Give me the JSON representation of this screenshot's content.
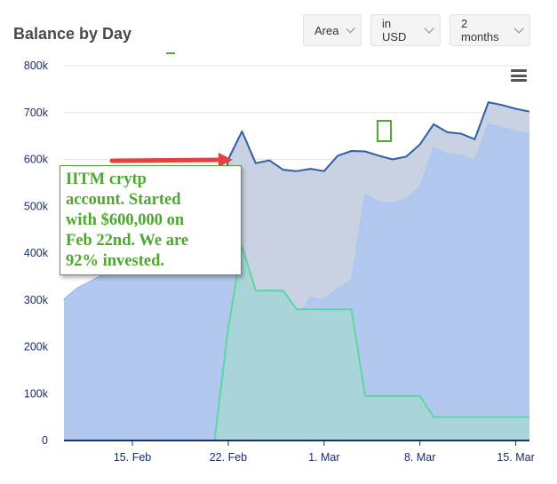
{
  "header": {
    "title": "Balance by Day"
  },
  "controls": {
    "chart_type": "Area",
    "currency": "in USD",
    "range": "2 months"
  },
  "annotation": {
    "text": "IITM crytp\naccount.  Started\nwith $600,000 on\nFeb 22nd.   We are\n92% invested."
  },
  "chart_data": {
    "type": "area",
    "title": "Balance by Day",
    "xlabel": "",
    "ylabel": "",
    "ylim": [
      0,
      800000
    ],
    "y_ticks": [
      0,
      100000,
      200000,
      300000,
      400000,
      500000,
      600000,
      700000,
      800000
    ],
    "y_tick_labels": [
      "0",
      "100k",
      "200k",
      "300k",
      "400k",
      "500k",
      "600k",
      "700k",
      "800k"
    ],
    "x_range": [
      "2022-02-10",
      "2022-03-16"
    ],
    "x_ticks": [
      "2022-02-15",
      "2022-02-22",
      "2022-03-01",
      "2022-03-08",
      "2022-03-15"
    ],
    "x_tick_labels": [
      "15. Feb",
      "22. Feb",
      "1. Mar",
      "8. Mar",
      "15. Mar"
    ],
    "grid": true,
    "colors": {
      "total_line": "#2e5fa8",
      "total_fill": "#c9d2e2",
      "mid_line": "#a9c6f2",
      "mid_fill": "#b3c8ee",
      "green_line": "#5dd6a4",
      "green_fill": "#a9d5d8",
      "axis": "#1e2f6b",
      "grid": "#e3e6ea",
      "tick_text": "#1d2d6b",
      "annotation_text": "#4da82f",
      "arrow": "#e34040"
    },
    "series": [
      {
        "x": [
          "2022-02-10",
          "2022-02-11",
          "2022-02-12",
          "2022-02-13",
          "2022-02-14",
          "2022-02-15",
          "2022-02-16",
          "2022-02-17",
          "2022-02-18",
          "2022-02-19",
          "2022-02-20",
          "2022-02-21",
          "2022-02-22",
          "2022-02-23",
          "2022-02-24",
          "2022-02-25",
          "2022-02-26",
          "2022-02-27",
          "2022-02-28",
          "2022-03-01",
          "2022-03-02",
          "2022-03-03",
          "2022-03-04",
          "2022-03-05",
          "2022-03-06",
          "2022-03-07",
          "2022-03-08",
          "2022-03-09",
          "2022-03-10",
          "2022-03-11",
          "2022-03-12",
          "2022-03-13",
          "2022-03-14",
          "2022-03-15",
          "2022-03-16"
        ],
        "values": [
          300000,
          325000,
          340000,
          355000,
          362000,
          360000,
          365000,
          372000,
          380000,
          392000,
          402000,
          412000,
          600000,
          660000,
          592000,
          598000,
          578000,
          575000,
          580000,
          575000,
          608000,
          618000,
          617000,
          608000,
          600000,
          606000,
          632000,
          675000,
          658000,
          655000,
          643000,
          722000,
          716000,
          708000,
          702000
        ]
      },
      {
        "x": [
          "2022-02-10",
          "2022-02-11",
          "2022-02-12",
          "2022-02-13",
          "2022-02-14",
          "2022-02-15",
          "2022-02-16",
          "2022-02-17",
          "2022-02-18",
          "2022-02-19",
          "2022-02-20",
          "2022-02-21",
          "2022-02-22",
          "2022-02-23",
          "2022-02-24",
          "2022-02-25",
          "2022-02-26",
          "2022-02-27",
          "2022-02-28",
          "2022-03-01",
          "2022-03-02",
          "2022-03-03",
          "2022-03-04",
          "2022-03-05",
          "2022-03-06",
          "2022-03-07",
          "2022-03-08",
          "2022-03-09",
          "2022-03-10",
          "2022-03-11",
          "2022-03-12",
          "2022-03-13",
          "2022-03-14",
          "2022-03-15",
          "2022-03-16"
        ],
        "values": [
          300000,
          325000,
          340000,
          355000,
          362000,
          360000,
          365000,
          372000,
          380000,
          392000,
          402000,
          412000,
          420000,
          400000,
          180000,
          280000,
          262000,
          255000,
          305000,
          300000,
          325000,
          340000,
          525000,
          508000,
          507000,
          515000,
          540000,
          625000,
          612000,
          608000,
          598000,
          675000,
          668000,
          660000,
          655000
        ]
      },
      {
        "x": [
          "2022-02-10",
          "2022-02-20",
          "2022-02-21",
          "2022-02-22",
          "2022-02-23",
          "2022-02-24",
          "2022-02-25",
          "2022-02-26",
          "2022-02-27",
          "2022-02-28",
          "2022-03-01",
          "2022-03-02",
          "2022-03-03",
          "2022-03-04",
          "2022-03-05",
          "2022-03-06",
          "2022-03-07",
          "2022-03-08",
          "2022-03-09",
          "2022-03-10",
          "2022-03-11",
          "2022-03-12",
          "2022-03-13",
          "2022-03-14",
          "2022-03-15",
          "2022-03-16"
        ],
        "values": [
          0,
          0,
          0,
          240000,
          415000,
          320000,
          320000,
          320000,
          280000,
          280000,
          280000,
          280000,
          280000,
          95000,
          95000,
          95000,
          95000,
          95000,
          50000,
          50000,
          50000,
          50000,
          50000,
          50000,
          50000,
          50000
        ]
      }
    ]
  }
}
